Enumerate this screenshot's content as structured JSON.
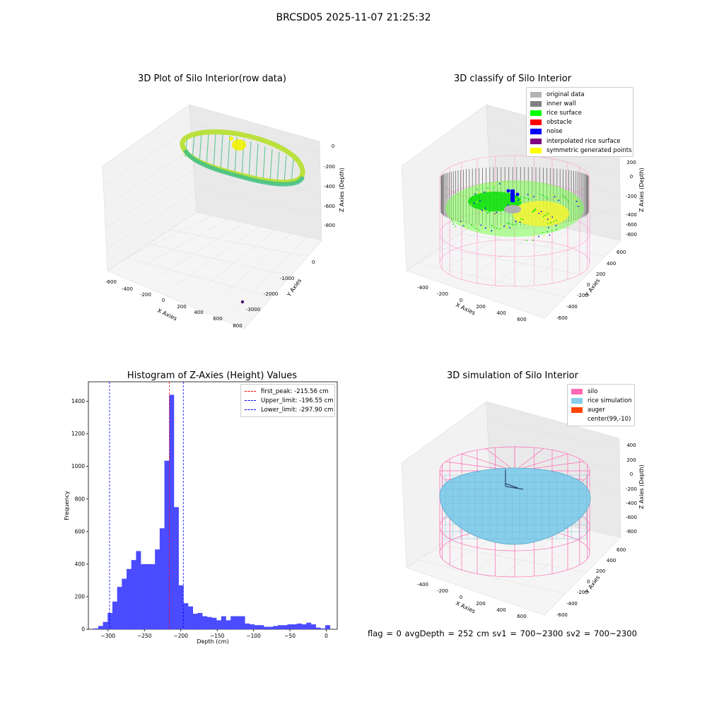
{
  "figure": {
    "suptitle": "BRCSD05 2025-11-07 21:25:32",
    "footer": "flag = 0     avgDepth = 252 cm  sv1 = 700~2300  sv2 = 700~2300"
  },
  "panels": {
    "raw": {
      "title": "3D Plot of Silo Interior(row data)",
      "xlabel": "X Axies",
      "ylabel": "Y Axies",
      "zlabel": "Z Axies (Depth)",
      "xticks": [
        "-600",
        "-400",
        "-200",
        "0",
        "200",
        "400",
        "600",
        "800"
      ],
      "yticks": [
        "0",
        "-1000",
        "-2000",
        "-3000"
      ],
      "zticks": [
        "0",
        "-200",
        "-400",
        "-600",
        "-800"
      ]
    },
    "classify": {
      "title": "3D classify of Silo Interior",
      "xlabel": "X Axies",
      "ylabel": "Y Axies",
      "zlabel": "Z Axies (Depth)",
      "xticks": [
        "-400",
        "-200",
        "0",
        "200",
        "400",
        "600"
      ],
      "yticks": [
        "600",
        "400",
        "200",
        "0",
        "-200",
        "-400",
        "-600"
      ],
      "zticks": [
        "200",
        "0",
        "-200",
        "-400",
        "-600",
        "-800"
      ],
      "legend": [
        {
          "label": "original data",
          "color": "#b3b3b3"
        },
        {
          "label": "inner wall",
          "color": "#808080"
        },
        {
          "label": "rice surface",
          "color": "#00ff00"
        },
        {
          "label": "obstacle",
          "color": "#ff0000"
        },
        {
          "label": "noise",
          "color": "#0000ff"
        },
        {
          "label": "interpolated rice surface",
          "color": "#800080"
        },
        {
          "label": "symmetric generated points",
          "color": "#ffff00"
        }
      ]
    },
    "histogram": {
      "title": "Histogram of Z-Axies (Height) Values",
      "xlabel": "Depth (cm)",
      "ylabel": "Frequency",
      "legend": [
        {
          "label": "first_peak: -215.56 cm",
          "color": "#ff0000"
        },
        {
          "label": "Upper_limit: -196.55 cm",
          "color": "#0000ff"
        },
        {
          "label": "Lower_limit: -297.90 cm",
          "color": "#0000ff"
        }
      ]
    },
    "simulation": {
      "title": "3D simulation of Silo Interior",
      "xlabel": "X Axies",
      "ylabel": "Y Axies",
      "zlabel": "Z Axies (Depth)",
      "xticks": [
        "-400",
        "-200",
        "0",
        "200",
        "400",
        "600"
      ],
      "yticks": [
        "600",
        "400",
        "200",
        "0",
        "-200",
        "-400",
        "-600"
      ],
      "zticks": [
        "400",
        "200",
        "0",
        "-200",
        "-400",
        "-600",
        "-800"
      ],
      "legend": [
        {
          "label": "silo",
          "color": "#ff69b4"
        },
        {
          "label": "rice simulation",
          "color": "#87ceeb"
        },
        {
          "label": "auger",
          "color": "#ff4500"
        },
        {
          "label": "center(99,-10)",
          "color": ""
        }
      ]
    }
  },
  "chart_data": {
    "type": "bar",
    "title": "Histogram of Z-Axies (Height) Values",
    "xlabel": "Depth (cm)",
    "ylabel": "Frequency",
    "xlim": [
      -327,
      15
    ],
    "ylim": [
      0,
      1520
    ],
    "xticks": [
      -300,
      -250,
      -200,
      -150,
      -100,
      -50,
      0
    ],
    "yticks": [
      0,
      200,
      400,
      600,
      800,
      1000,
      1200,
      1400
    ],
    "bin_width": 6.5,
    "bins_start": [
      -320,
      -313.5,
      -307,
      -300.5,
      -294,
      -287.5,
      -281,
      -274.5,
      -268,
      -261.5,
      -255,
      -248.5,
      -242,
      -235.5,
      -229,
      -222.5,
      -216,
      -209.5,
      -203,
      -196.5,
      -190,
      -183.5,
      -177,
      -170.5,
      -164,
      -157.5,
      -151,
      -144.5,
      -138,
      -131.5,
      -125,
      -118.5,
      -112,
      -105.5,
      -99,
      -92.5,
      -86,
      -79.5,
      -73,
      -66.5,
      -60,
      -53.5,
      -47,
      -40.5,
      -34,
      -27.5,
      -21,
      -14.5,
      -8,
      -1.5
    ],
    "values": [
      5,
      20,
      45,
      100,
      170,
      260,
      310,
      370,
      425,
      480,
      400,
      400,
      400,
      490,
      620,
      1035,
      1440,
      750,
      270,
      160,
      140,
      95,
      100,
      80,
      75,
      70,
      55,
      80,
      55,
      80,
      80,
      80,
      35,
      30,
      25,
      25,
      15,
      15,
      20,
      25,
      25,
      30,
      30,
      35,
      30,
      40,
      30,
      10,
      5,
      25
    ],
    "color": "#4b4bff",
    "vlines": [
      {
        "name": "first_peak",
        "x": -215.56,
        "color": "#ff0000"
      },
      {
        "name": "Upper_limit",
        "x": -196.55,
        "color": "#0000ff"
      },
      {
        "name": "Lower_limit",
        "x": -297.9,
        "color": "#0000ff"
      }
    ]
  }
}
